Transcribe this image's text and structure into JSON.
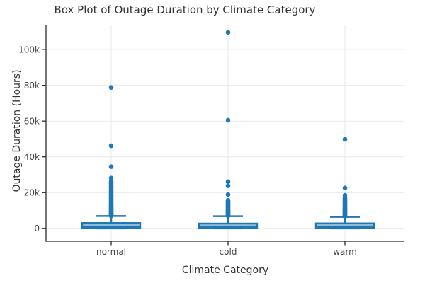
{
  "figure": {
    "title": "Box Plot of Outage Duration by Climate Category",
    "x_axis_title": "Climate Category",
    "y_axis_title": "Outage Duration (Hours)"
  },
  "chart_data": {
    "type": "box",
    "title": "Box Plot of Outage Duration by Climate Category",
    "xlabel": "Climate Category",
    "ylabel": "Outage Duration (Hours)",
    "categories": [
      "normal",
      "cold",
      "warm"
    ],
    "ylim": [
      -7200,
      113900
    ],
    "grid": true,
    "legend": "none",
    "y_ticks": [
      {
        "value": 0,
        "label": "0"
      },
      {
        "value": 20000,
        "label": "20k"
      },
      {
        "value": 40000,
        "label": "40k"
      },
      {
        "value": 60000,
        "label": "60k"
      },
      {
        "value": 80000,
        "label": "80k"
      },
      {
        "value": 100000,
        "label": "100k"
      }
    ],
    "colors": {
      "box_line": "#1f77b4",
      "box_fill": "#8fbbd9",
      "marker": "#1f77b4",
      "gridline": "#e9e9e9",
      "axis": "#2b2b2b",
      "text": "#444444"
    },
    "series": [
      {
        "name": "normal",
        "q1": 100,
        "median": 600,
        "q3": 3000,
        "whisker_low": 0,
        "whisker_high": 6900,
        "outliers": [
          78800,
          46200,
          34500,
          28100,
          26100,
          25200,
          24300,
          23400,
          22500,
          21600,
          20800,
          20000,
          19200,
          18400,
          17600,
          16900,
          16200,
          15500,
          14800,
          14100,
          13500,
          12900,
          12300,
          11700,
          11200,
          10700,
          10200,
          9700,
          9200,
          8800,
          8400,
          8000,
          7600,
          7300,
          7000
        ]
      },
      {
        "name": "cold",
        "q1": 100,
        "median": 600,
        "q3": 2700,
        "whisker_low": 0,
        "whisker_high": 6800,
        "outliers": [
          109600,
          60500,
          26100,
          23800,
          18900,
          15700,
          15100,
          14500,
          13900,
          13300,
          12800,
          12300,
          11800,
          11300,
          10800,
          10400,
          10000,
          9600,
          9200,
          8800,
          8400,
          8000,
          7600,
          7300,
          7000
        ]
      },
      {
        "name": "warm",
        "q1": 100,
        "median": 600,
        "q3": 2800,
        "whisker_low": 0,
        "whisker_high": 6400,
        "outliers": [
          49800,
          22600,
          18500,
          16900,
          16200,
          15500,
          14900,
          14300,
          13700,
          13100,
          12600,
          12100,
          11600,
          11100,
          10600,
          10200,
          9800,
          9400,
          9000,
          8600,
          8200,
          7800,
          7400,
          7000,
          6700
        ]
      }
    ]
  }
}
